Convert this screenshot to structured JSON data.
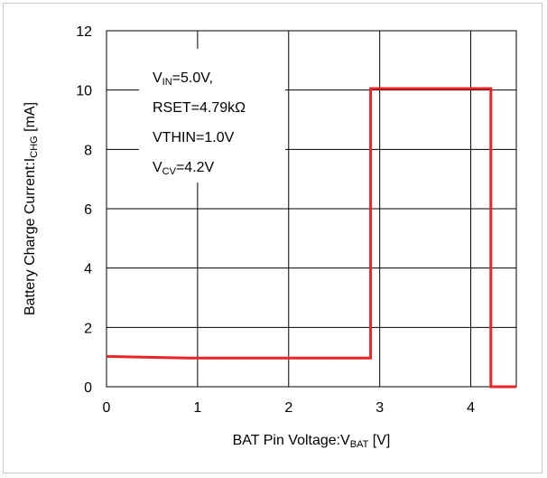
{
  "chart_data": {
    "type": "line",
    "title": "",
    "xlabel": {
      "main": "BAT Pin Voltage:V",
      "sub": "BAT",
      "tail": " [V]"
    },
    "ylabel": {
      "main": "Battery Charge Current:I",
      "sub": "CHG",
      "tail": " [mA]"
    },
    "xlim": [
      0,
      4.5
    ],
    "ylim": [
      0,
      12
    ],
    "xticks": [
      0,
      1,
      2,
      3,
      4
    ],
    "yticks": [
      0,
      2,
      4,
      6,
      8,
      10,
      12
    ],
    "xtick_labels": [
      "0",
      "1",
      "2",
      "3",
      "4"
    ],
    "ytick_labels": [
      "0",
      "2",
      "4",
      "6",
      "8",
      "10",
      "12"
    ],
    "grid": true,
    "series": [
      {
        "color": "#e8262a",
        "x": [
          0,
          0.9,
          2.9,
          2.9,
          4.22,
          4.22,
          4.5
        ],
        "y": [
          1.02,
          0.97,
          0.97,
          10.05,
          10.05,
          0,
          0
        ]
      }
    ],
    "annotations": [
      {
        "main": "V",
        "sub": "IN",
        "tail": "=5.0V,"
      },
      {
        "main": "RSET=4.79kΩ",
        "sub": "",
        "tail": ""
      },
      {
        "main": "VTHIN=1.0V",
        "sub": "",
        "tail": ""
      },
      {
        "main": "V",
        "sub": "CV",
        "tail": "=4.2V"
      }
    ]
  }
}
